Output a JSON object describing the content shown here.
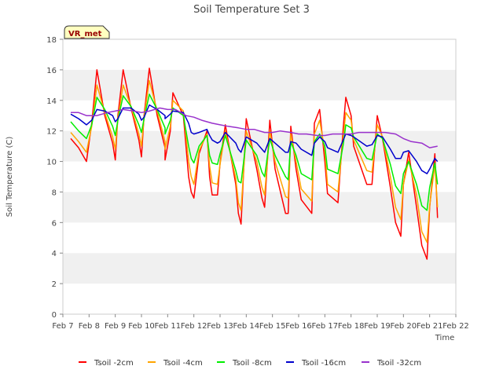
{
  "chart_data": {
    "type": "line",
    "title": "Soil Temperature Set 3",
    "xlabel": "Time",
    "ylabel": "Soil Temperature (C)",
    "ylim": [
      0,
      18
    ],
    "yticks": [
      0,
      2,
      4,
      6,
      8,
      10,
      12,
      14,
      16,
      18
    ],
    "xlim": [
      "Feb 7",
      "Feb 22"
    ],
    "xticks": [
      "Feb 7",
      "Feb 8",
      "Feb 9",
      "Feb 10",
      "Feb 11",
      "Feb 12",
      "Feb 13",
      "Feb 14",
      "Feb 15",
      "Feb 16",
      "Feb 17",
      "Feb 18",
      "Feb 19",
      "Feb 20",
      "Feb 21",
      "Feb 22"
    ],
    "grid": "horizontal bands",
    "legend_position": "bottom",
    "annotation": "VR_met",
    "series": [
      {
        "name": "Tsoil -2cm",
        "color": "#ff0000",
        "x": [
          7.3,
          7.6,
          7.9,
          8.1,
          8.3,
          8.6,
          8.9,
          9.0,
          9.1,
          9.3,
          9.6,
          9.9,
          10.0,
          10.1,
          10.3,
          10.6,
          10.9,
          10.9,
          11.1,
          11.2,
          11.6,
          11.8,
          11.9,
          12.0,
          12.2,
          12.5,
          12.6,
          12.7,
          12.9,
          13.0,
          13.2,
          13.6,
          13.7,
          13.8,
          14.0,
          14.4,
          14.6,
          14.7,
          14.9,
          15.1,
          15.5,
          15.6,
          15.7,
          15.9,
          16.1,
          16.5,
          16.6,
          16.8,
          17.0,
          17.1,
          17.5,
          17.7,
          17.8,
          18.0,
          18.1,
          18.6,
          18.8,
          19.0,
          19.2,
          19.5,
          19.7,
          19.9,
          20.0,
          20.2,
          20.5,
          20.7,
          20.9,
          21.0,
          21.2,
          21.3
        ],
        "values": [
          11.5,
          10.9,
          10.0,
          12.5,
          16.0,
          13.0,
          11.2,
          10.1,
          13.0,
          16.0,
          13.5,
          11.4,
          10.3,
          13.0,
          16.1,
          13.0,
          10.9,
          10.1,
          12.0,
          14.5,
          13.0,
          9.0,
          8.0,
          7.6,
          10.5,
          12.0,
          9.0,
          7.8,
          7.8,
          9.9,
          12.4,
          8.5,
          6.6,
          5.9,
          12.8,
          9.5,
          7.6,
          7.0,
          12.7,
          9.5,
          6.6,
          6.6,
          12.3,
          9.5,
          7.5,
          6.6,
          12.5,
          13.4,
          10.0,
          7.9,
          7.3,
          12.2,
          14.2,
          13.0,
          11.0,
          8.5,
          8.5,
          13.0,
          11.5,
          8.3,
          6.0,
          5.1,
          8.5,
          10.6,
          7.0,
          4.5,
          3.6,
          7.0,
          10.5,
          6.3
        ]
      },
      {
        "name": "Tsoil -4cm",
        "color": "#ffa500",
        "x": [
          7.3,
          7.6,
          7.9,
          8.1,
          8.3,
          8.6,
          8.9,
          9.0,
          9.1,
          9.3,
          9.6,
          9.9,
          10.0,
          10.1,
          10.3,
          10.6,
          10.9,
          10.9,
          11.1,
          11.2,
          11.6,
          11.8,
          11.9,
          12.0,
          12.2,
          12.5,
          12.6,
          12.7,
          12.9,
          13.0,
          13.2,
          13.6,
          13.7,
          13.8,
          14.0,
          14.4,
          14.6,
          14.7,
          14.9,
          15.1,
          15.5,
          15.6,
          15.7,
          15.9,
          16.1,
          16.5,
          16.6,
          16.8,
          17.0,
          17.1,
          17.5,
          17.7,
          17.8,
          18.0,
          18.1,
          18.6,
          18.8,
          19.0,
          19.2,
          19.5,
          19.7,
          19.9,
          20.0,
          20.2,
          20.5,
          20.7,
          20.9,
          21.0,
          21.2,
          21.3
        ],
        "values": [
          11.9,
          11.3,
          10.6,
          12.3,
          15.0,
          13.2,
          11.6,
          10.8,
          12.8,
          15.0,
          13.6,
          11.8,
          11.0,
          12.9,
          15.3,
          13.3,
          11.3,
          10.8,
          12.3,
          14.0,
          13.3,
          10.0,
          9.0,
          8.5,
          10.7,
          11.8,
          9.7,
          8.6,
          8.5,
          9.8,
          12.0,
          8.9,
          7.3,
          6.8,
          12.0,
          10.0,
          8.3,
          7.8,
          12.0,
          10.0,
          7.7,
          7.6,
          11.8,
          10.0,
          8.2,
          7.4,
          11.8,
          12.7,
          10.7,
          8.5,
          8.0,
          11.6,
          13.2,
          12.7,
          11.4,
          9.4,
          9.3,
          12.4,
          11.6,
          9.0,
          7.0,
          6.2,
          8.5,
          10.1,
          7.8,
          5.4,
          4.7,
          7.1,
          9.8,
          7.0
        ]
      },
      {
        "name": "Tsoil -8cm",
        "color": "#00ee00",
        "x": [
          7.3,
          7.6,
          7.9,
          8.1,
          8.3,
          8.6,
          8.9,
          9.0,
          9.1,
          9.3,
          9.6,
          9.9,
          10.0,
          10.1,
          10.3,
          10.6,
          10.9,
          10.9,
          11.1,
          11.2,
          11.6,
          11.8,
          11.9,
          12.0,
          12.2,
          12.5,
          12.6,
          12.7,
          12.9,
          13.0,
          13.2,
          13.6,
          13.7,
          13.8,
          14.0,
          14.4,
          14.6,
          14.7,
          14.9,
          15.1,
          15.5,
          15.6,
          15.7,
          15.9,
          16.1,
          16.5,
          16.6,
          16.8,
          17.0,
          17.1,
          17.5,
          17.7,
          17.8,
          18.0,
          18.1,
          18.6,
          18.8,
          19.0,
          19.2,
          19.5,
          19.7,
          19.9,
          20.0,
          20.2,
          20.5,
          20.7,
          20.9,
          21.0,
          21.2,
          21.3
        ],
        "values": [
          12.6,
          12.0,
          11.5,
          12.4,
          14.2,
          13.4,
          12.3,
          11.7,
          12.7,
          14.3,
          13.6,
          12.4,
          11.9,
          12.8,
          14.4,
          13.4,
          12.2,
          11.8,
          12.7,
          13.5,
          13.0,
          11.0,
          10.2,
          9.9,
          11.0,
          11.7,
          10.4,
          9.9,
          9.8,
          10.5,
          11.7,
          9.4,
          8.7,
          8.6,
          11.4,
          10.4,
          9.3,
          9.0,
          11.5,
          10.4,
          9.0,
          8.8,
          11.3,
          10.4,
          9.2,
          8.8,
          11.3,
          11.8,
          11.0,
          9.5,
          9.2,
          11.1,
          12.4,
          12.2,
          11.6,
          10.2,
          10.1,
          11.8,
          11.5,
          9.8,
          8.4,
          7.9,
          9.2,
          10.0,
          8.5,
          7.1,
          6.8,
          8.3,
          9.9,
          8.5
        ]
      },
      {
        "name": "Tsoil -16cm",
        "color": "#0000cc",
        "x": [
          7.3,
          7.6,
          7.9,
          8.1,
          8.3,
          8.6,
          8.9,
          9.0,
          9.1,
          9.3,
          9.6,
          9.9,
          10.0,
          10.1,
          10.3,
          10.6,
          10.9,
          10.9,
          11.1,
          11.2,
          11.6,
          11.8,
          11.9,
          12.0,
          12.2,
          12.5,
          12.6,
          12.7,
          12.9,
          13.0,
          13.2,
          13.6,
          13.7,
          13.8,
          14.0,
          14.4,
          14.6,
          14.7,
          14.9,
          15.1,
          15.5,
          15.6,
          15.7,
          15.9,
          16.1,
          16.5,
          16.6,
          16.8,
          17.0,
          17.1,
          17.5,
          17.7,
          17.8,
          18.0,
          18.1,
          18.6,
          18.8,
          19.0,
          19.2,
          19.5,
          19.7,
          19.9,
          20.0,
          20.2,
          20.5,
          20.7,
          20.9,
          21.0,
          21.2,
          21.3
        ],
        "values": [
          13.1,
          12.8,
          12.4,
          12.7,
          13.4,
          13.3,
          13.0,
          12.6,
          12.8,
          13.5,
          13.5,
          13.1,
          12.7,
          12.9,
          13.7,
          13.4,
          13.0,
          12.8,
          13.1,
          13.3,
          13.2,
          12.5,
          11.9,
          11.8,
          11.9,
          12.1,
          11.7,
          11.4,
          11.2,
          11.3,
          11.9,
          11.2,
          10.8,
          10.6,
          11.6,
          11.2,
          10.8,
          10.6,
          11.5,
          11.2,
          10.6,
          10.6,
          11.3,
          11.2,
          10.8,
          10.4,
          11.2,
          11.6,
          11.3,
          10.9,
          10.6,
          11.4,
          11.8,
          11.7,
          11.6,
          11.0,
          11.1,
          11.7,
          11.6,
          10.8,
          10.2,
          10.2,
          10.6,
          10.7,
          10.0,
          9.4,
          9.2,
          9.5,
          10.2,
          10.0
        ]
      },
      {
        "name": "Tsoil -32cm",
        "color": "#9932cc",
        "x": [
          7.3,
          7.6,
          7.9,
          8.3,
          8.7,
          9.0,
          9.3,
          9.7,
          10.0,
          10.3,
          10.7,
          11.0,
          11.3,
          11.7,
          12.0,
          12.3,
          12.7,
          13.0,
          13.3,
          13.7,
          14.0,
          14.3,
          14.7,
          15.0,
          15.3,
          15.7,
          16.0,
          16.3,
          16.7,
          17.0,
          17.3,
          17.7,
          18.0,
          18.3,
          18.7,
          19.0,
          19.3,
          19.7,
          20.0,
          20.3,
          20.7,
          21.0,
          21.3
        ],
        "values": [
          13.2,
          13.2,
          13.0,
          13.0,
          13.2,
          13.3,
          13.4,
          13.3,
          13.2,
          13.3,
          13.5,
          13.4,
          13.4,
          13.0,
          12.9,
          12.7,
          12.5,
          12.4,
          12.3,
          12.2,
          12.1,
          12.1,
          11.9,
          11.9,
          12.0,
          11.9,
          11.8,
          11.8,
          11.7,
          11.7,
          11.8,
          11.8,
          11.8,
          11.9,
          11.9,
          11.9,
          11.9,
          11.8,
          11.5,
          11.3,
          11.2,
          10.9,
          11.0
        ]
      }
    ]
  }
}
